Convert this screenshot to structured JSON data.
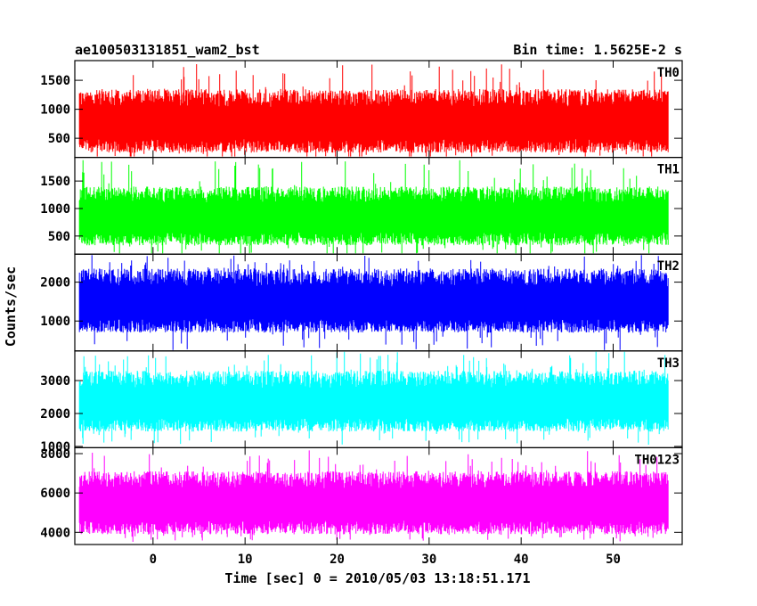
{
  "chart_data": {
    "type": "line",
    "title_left": "ae100503131851_wam2_bst",
    "title_right": "Bin time: 1.5625E-2 s",
    "xlabel": "Time [sec] 0 = 2010/05/03 13:18:51.171",
    "ylabel": "Counts/sec",
    "xlim": [
      -8.5,
      57.5
    ],
    "xticks": [
      0,
      10,
      20,
      30,
      40,
      50
    ],
    "x_start": -8,
    "x_end": 56,
    "panels": [
      {
        "name": "TH0",
        "color": "#ff0000",
        "ylim": [
          170,
          1840
        ],
        "yticks": [
          500,
          1000,
          1500
        ],
        "mean": 750,
        "typical_low": 250,
        "typical_high": 1350,
        "min": 60,
        "max": 1800
      },
      {
        "name": "TH1",
        "color": "#00ff00",
        "ylim": [
          170,
          1930
        ],
        "yticks": [
          500,
          1000,
          1500
        ],
        "mean": 800,
        "typical_low": 330,
        "typical_high": 1400,
        "min": 100,
        "max": 1900
      },
      {
        "name": "TH2",
        "color": "#0000ff",
        "ylim": [
          230,
          2720
        ],
        "yticks": [
          1000,
          2000
        ],
        "mean": 1450,
        "typical_low": 700,
        "typical_high": 2350,
        "min": 200,
        "max": 2700
      },
      {
        "name": "TH3",
        "color": "#00ffff",
        "ylim": [
          960,
          3900
        ],
        "yticks": [
          1000,
          2000,
          3000
        ],
        "mean": 2500,
        "typical_low": 1450,
        "typical_high": 3300,
        "min": 1050,
        "max": 3900
      },
      {
        "name": "TH0123",
        "color": "#ff00ff",
        "ylim": [
          3380,
          8300
        ],
        "yticks": [
          4000,
          6000,
          8000
        ],
        "mean": 5550,
        "typical_low": 3900,
        "typical_high": 7100,
        "min": 3500,
        "max": 8200
      }
    ]
  }
}
